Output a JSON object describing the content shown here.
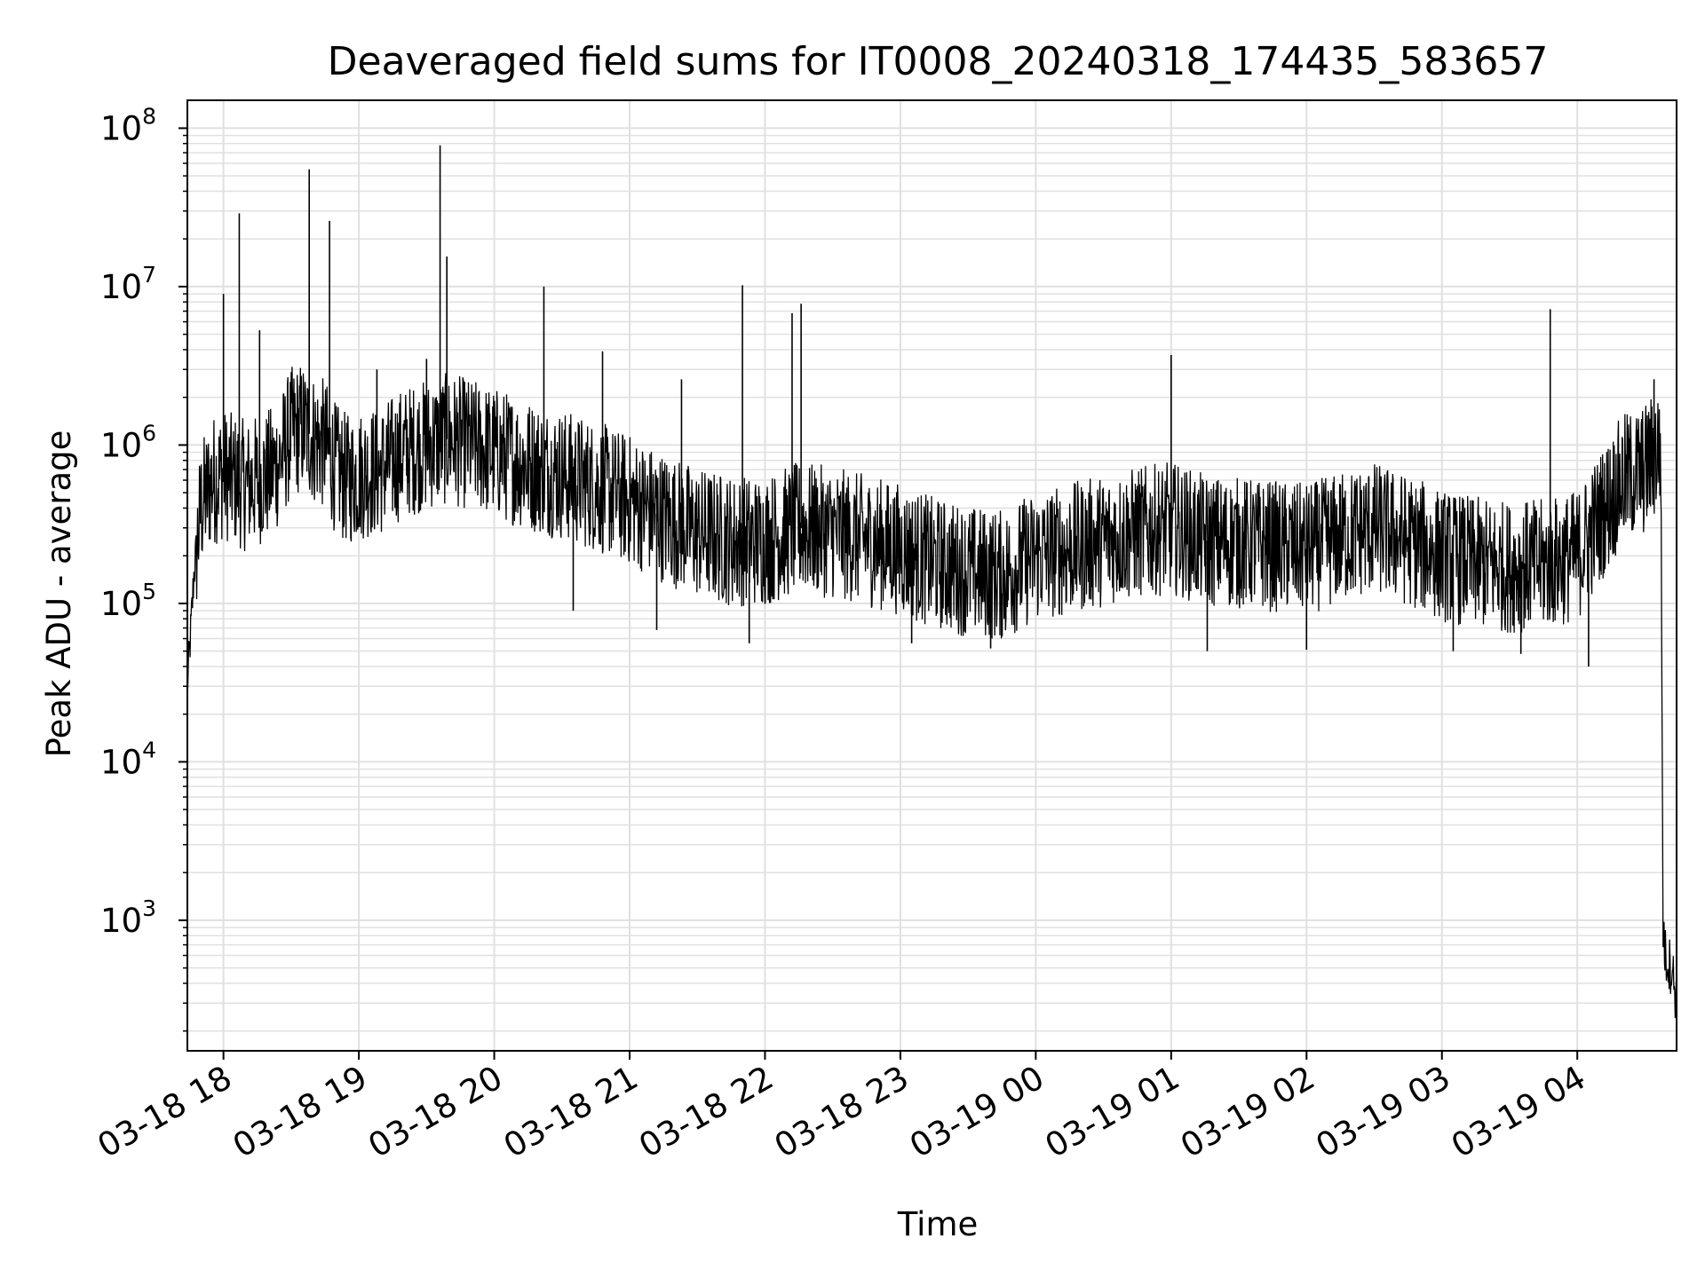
{
  "chart_data": {
    "type": "line",
    "title": "Deaveraged field sums for IT0008_20240318_174435_583657",
    "xlabel": "Time",
    "ylabel": "Peak ADU - average",
    "y_scale": "log",
    "ylim": [
      150,
      150000000
    ],
    "xlim": [
      "03-18 17:44",
      "03-19 04:44"
    ],
    "grid": true,
    "line_color": "#000000",
    "grid_color": "#e0e0e0",
    "x_ticks": [
      {
        "value": "03-18 18:00",
        "label": "03-18 18"
      },
      {
        "value": "03-18 19:00",
        "label": "03-18 19"
      },
      {
        "value": "03-18 20:00",
        "label": "03-18 20"
      },
      {
        "value": "03-18 21:00",
        "label": "03-18 21"
      },
      {
        "value": "03-18 22:00",
        "label": "03-18 22"
      },
      {
        "value": "03-18 23:00",
        "label": "03-18 23"
      },
      {
        "value": "03-19 00:00",
        "label": "03-19 00"
      },
      {
        "value": "03-19 01:00",
        "label": "03-19 01"
      },
      {
        "value": "03-19 02:00",
        "label": "03-19 02"
      },
      {
        "value": "03-19 03:00",
        "label": "03-19 03"
      },
      {
        "value": "03-19 04:00",
        "label": "03-19 04"
      }
    ],
    "y_ticks": [
      {
        "value": 1000,
        "base": "10",
        "exp": "3"
      },
      {
        "value": 10000,
        "base": "10",
        "exp": "4"
      },
      {
        "value": 100000,
        "base": "10",
        "exp": "5"
      },
      {
        "value": 1000000,
        "base": "10",
        "exp": "6"
      },
      {
        "value": 10000000,
        "base": "10",
        "exp": "7"
      },
      {
        "value": 100000000,
        "base": "10",
        "exp": "8"
      }
    ],
    "series": [
      {
        "x": [
          "03-18 17:44",
          "03-18 17:45",
          "03-18 17:47",
          "03-18 17:50",
          "03-18 17:55",
          "03-18 18:00",
          "03-18 18:05",
          "03-18 18:10",
          "03-18 18:15",
          "03-18 18:20",
          "03-18 18:25",
          "03-18 18:30",
          "03-18 18:35",
          "03-18 18:40",
          "03-18 18:45",
          "03-18 18:50",
          "03-18 18:55",
          "03-18 19:00",
          "03-18 19:10",
          "03-18 19:20",
          "03-18 19:30",
          "03-18 19:40",
          "03-18 19:50",
          "03-18 20:00",
          "03-18 20:15",
          "03-18 20:30",
          "03-18 20:45",
          "03-18 21:00",
          "03-18 21:15",
          "03-18 21:30",
          "03-18 21:45",
          "03-18 22:00",
          "03-18 22:15",
          "03-18 22:30",
          "03-18 22:45",
          "03-18 23:00",
          "03-18 23:15",
          "03-18 23:30",
          "03-18 23:45",
          "03-19 00:00",
          "03-19 00:15",
          "03-19 00:30",
          "03-19 00:45",
          "03-19 01:00",
          "03-19 01:15",
          "03-19 01:30",
          "03-19 01:45",
          "03-19 02:00",
          "03-19 02:15",
          "03-19 02:30",
          "03-19 02:45",
          "03-19 03:00",
          "03-19 03:15",
          "03-19 03:30",
          "03-19 03:45",
          "03-19 04:00",
          "03-19 04:10",
          "03-19 04:20",
          "03-19 04:30",
          "03-19 04:35",
          "03-19 04:37",
          "03-19 04:38",
          "03-19 04:39",
          "03-19 04:40",
          "03-19 04:42",
          "03-19 04:44"
        ],
        "y": [
          30000,
          50000,
          160000,
          400000,
          600000,
          650000,
          600000,
          550000,
          600000,
          650000,
          800000,
          1200000,
          1300000,
          1100000,
          1000000,
          700000,
          600000,
          650000,
          700000,
          900000,
          1000000,
          1100000,
          1000000,
          900000,
          750000,
          650000,
          550000,
          450000,
          350000,
          280000,
          250000,
          250000,
          300000,
          280000,
          250000,
          220000,
          180000,
          160000,
          150000,
          200000,
          220000,
          250000,
          280000,
          300000,
          250000,
          240000,
          230000,
          220000,
          260000,
          300000,
          250000,
          200000,
          180000,
          170000,
          175000,
          200000,
          350000,
          600000,
          700000,
          900000,
          1000000,
          900,
          600,
          550,
          500,
          300
        ]
      }
    ],
    "spikes": [
      {
        "x": "03-18 18:00",
        "y": 9000000
      },
      {
        "x": "03-18 18:07",
        "y": 29000000
      },
      {
        "x": "03-18 18:16",
        "y": 5300000
      },
      {
        "x": "03-18 18:38",
        "y": 55000000
      },
      {
        "x": "03-18 18:47",
        "y": 26000000
      },
      {
        "x": "03-18 19:08",
        "y": 3000000
      },
      {
        "x": "03-18 19:30",
        "y": 3500000
      },
      {
        "x": "03-18 19:36",
        "y": 78000000
      },
      {
        "x": "03-18 19:39",
        "y": 15500000
      },
      {
        "x": "03-18 20:22",
        "y": 10000000
      },
      {
        "x": "03-18 20:48",
        "y": 3900000
      },
      {
        "x": "03-18 21:23",
        "y": 2600000
      },
      {
        "x": "03-18 21:50",
        "y": 10200000
      },
      {
        "x": "03-18 22:12",
        "y": 6800000
      },
      {
        "x": "03-18 22:16",
        "y": 7800000
      },
      {
        "x": "03-19 01:00",
        "y": 3700000
      },
      {
        "x": "03-19 03:48",
        "y": 7200000
      },
      {
        "x": "03-19 04:34",
        "y": 2600000
      }
    ],
    "dips": [
      {
        "x": "03-18 20:35",
        "y": 90000
      },
      {
        "x": "03-18 21:12",
        "y": 68000
      },
      {
        "x": "03-18 21:53",
        "y": 56000
      },
      {
        "x": "03-18 23:05",
        "y": 56000
      },
      {
        "x": "03-18 23:40",
        "y": 52000
      },
      {
        "x": "03-19 01:16",
        "y": 50000
      },
      {
        "x": "03-19 02:00",
        "y": 51000
      },
      {
        "x": "03-19 03:05",
        "y": 50000
      },
      {
        "x": "03-19 03:35",
        "y": 48000
      },
      {
        "x": "03-19 04:05",
        "y": 40000
      }
    ]
  }
}
